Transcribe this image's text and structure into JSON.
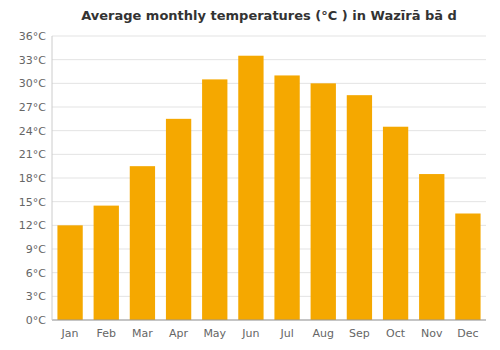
{
  "chart_data": {
    "type": "bar",
    "title": "Average monthly temperatures (°C ) in Wazīrā bā d",
    "categories": [
      "Jan",
      "Feb",
      "Mar",
      "Apr",
      "May",
      "Jun",
      "Jul",
      "Aug",
      "Sep",
      "Oct",
      "Nov",
      "Dec"
    ],
    "values": [
      12,
      14.5,
      19.5,
      25.5,
      30.5,
      33.5,
      31,
      30,
      28.5,
      24.5,
      18.5,
      13.5
    ],
    "color": "#F5A800",
    "ylim": [
      0,
      36
    ],
    "yticks": [
      {
        "value": 0,
        "label": "0°C"
      },
      {
        "value": 3,
        "label": "3°C"
      },
      {
        "value": 6,
        "label": "6°C"
      },
      {
        "value": 9,
        "label": "9°C"
      },
      {
        "value": 12,
        "label": "12°C"
      },
      {
        "value": 15,
        "label": "15°C"
      },
      {
        "value": 18,
        "label": "18°C"
      },
      {
        "value": 21,
        "label": "21°C"
      },
      {
        "value": 24,
        "label": "24°C"
      },
      {
        "value": 27,
        "label": "27°C"
      },
      {
        "value": 30,
        "label": "30°C"
      },
      {
        "value": 33,
        "label": "33°C"
      },
      {
        "value": 36,
        "label": "36°C"
      }
    ],
    "grid": true
  }
}
